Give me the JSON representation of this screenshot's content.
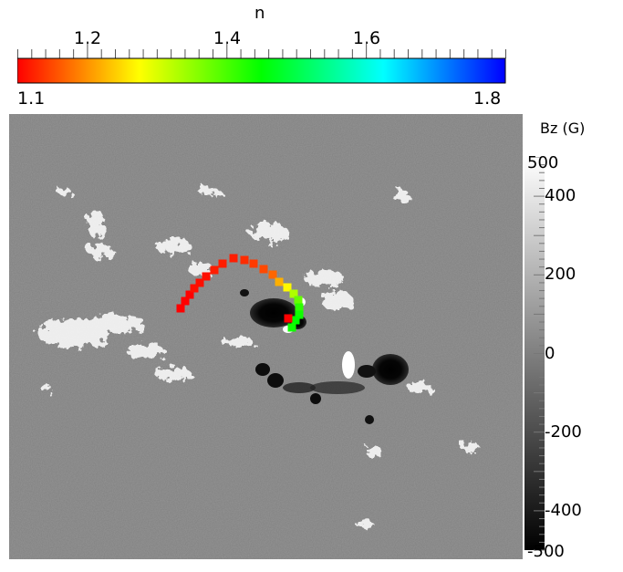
{
  "top_colorbar": {
    "title": "n",
    "min_label": "1.1",
    "max_label": "1.8",
    "min": 1.1,
    "max": 1.8,
    "tick_labels": [
      {
        "value": 1.2,
        "label": "1.2"
      },
      {
        "value": 1.4,
        "label": "1.4"
      },
      {
        "value": 1.6,
        "label": "1.6"
      }
    ],
    "minor_tick_step": 0.02,
    "gradient_stops": [
      "#ff0000",
      "#ffff00",
      "#00ff00",
      "#00ffff",
      "#0000ff"
    ]
  },
  "right_colorbar": {
    "title": "Bz (G)",
    "min": -500,
    "max": 500,
    "labels": [
      {
        "value": 500,
        "label": "500"
      },
      {
        "value": 400,
        "label": "400"
      },
      {
        "value": 200,
        "label": "200"
      },
      {
        "value": 0,
        "label": "0"
      },
      {
        "value": -200,
        "label": "-200"
      },
      {
        "value": -400,
        "label": "-400"
      },
      {
        "value": -500,
        "label": "-500"
      }
    ],
    "minor_tick_step": 20
  },
  "markers": {
    "n_values": [
      1.1,
      1.1,
      1.1,
      1.11,
      1.11,
      1.11,
      1.12,
      1.12,
      1.12,
      1.13,
      1.14,
      1.15,
      1.17,
      1.22,
      1.27,
      1.33,
      1.38,
      1.42,
      1.44,
      1.45,
      1.44,
      1.1
    ]
  }
}
